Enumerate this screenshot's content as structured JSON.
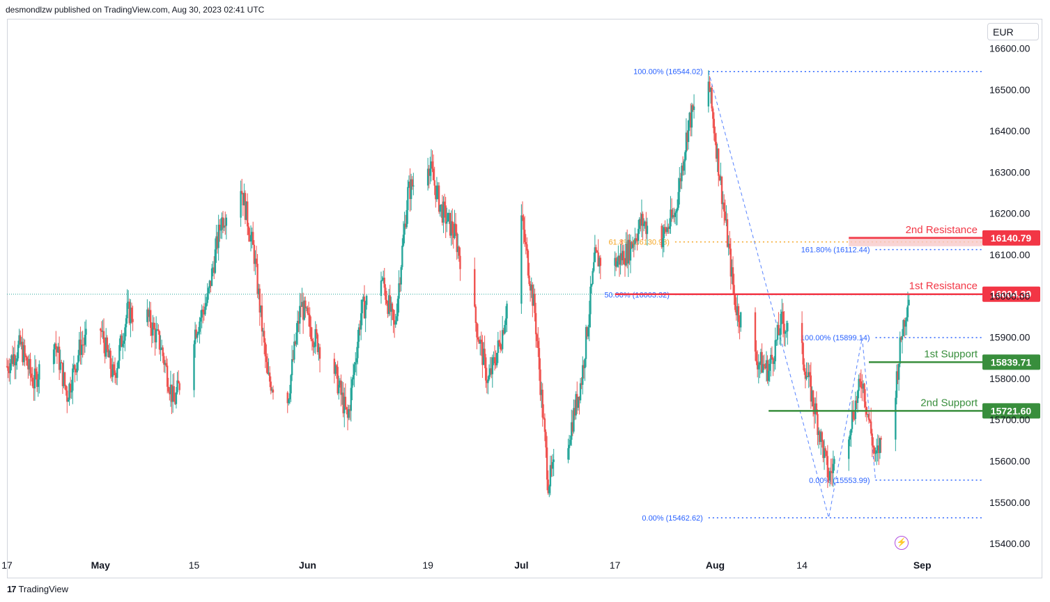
{
  "header": {
    "text": "desmondlzw published on TradingView.com, Aug 30, 2023 02:41 UTC"
  },
  "currency": "EUR",
  "footer": {
    "logo_text": "TradingView"
  },
  "icons": {
    "footer_logo": "tradingview-logo-icon",
    "alert": "lightning-icon"
  },
  "colors": {
    "up": "#26a69a",
    "down": "#ef5350",
    "resistance": "#f23645",
    "support": "#388e3c",
    "fib": "#2962ff"
  },
  "chart_data": {
    "type": "candlestick",
    "title": "",
    "currency": "EUR",
    "yaxis": {
      "ticks": [
        15400,
        15500,
        15600,
        15700,
        15800,
        15900,
        16000,
        16100,
        16200,
        16300,
        16400,
        16500,
        16600
      ],
      "tick_labels": [
        "15400.00",
        "15500.00",
        "15600.00",
        "15700.00",
        "15800.00",
        "15900.00",
        "16000.00",
        "16100.00",
        "16200.00",
        "16300.00",
        "16400.00",
        "16500.00",
        "16600.00"
      ],
      "range": [
        15380,
        16670
      ]
    },
    "xaxis": {
      "tick_labels": [
        "17",
        "May",
        "15",
        "Jun",
        "19",
        "Jul",
        "17",
        "Aug",
        "14",
        "Sep"
      ],
      "tick_dates": [
        "2023-04-17",
        "2023-05-01",
        "2023-05-15",
        "2023-06-01",
        "2023-06-19",
        "2023-07-03",
        "2023-07-17",
        "2023-08-01",
        "2023-08-14",
        "2023-09-01"
      ],
      "range": [
        "2023-04-17",
        "2023-09-10"
      ]
    },
    "last_price": 16004.39,
    "levels": [
      {
        "label": "2nd Resistance",
        "value": 16140.79,
        "value_text": "16140.79",
        "kind": "resistance",
        "start": "2023-08-21"
      },
      {
        "label": "1st Resistance",
        "value": 16004.39,
        "value_text": "16004.39",
        "kind": "resistance",
        "start": "2023-07-17"
      },
      {
        "label": "1st Support",
        "value": 15839.71,
        "value_text": "15839.71",
        "kind": "support",
        "start": "2023-08-24"
      },
      {
        "label": "2nd Support",
        "value": 15721.6,
        "value_text": "15721.60",
        "kind": "support",
        "start": "2023-08-09"
      }
    ],
    "fib_levels": [
      {
        "text": "100.00% (16544.02)",
        "value": 16544.02,
        "start": "2023-07-31"
      },
      {
        "text": "61.8% (16130.93)",
        "value": 16130.93,
        "start": "2023-07-26",
        "highlight": true
      },
      {
        "text": "161.80% (16112.44)",
        "value": 16112.44,
        "start": "2023-08-25"
      },
      {
        "text": "50.00% (16003.32)",
        "value": 16003.32,
        "start": "2023-07-26"
      },
      {
        "text": "100.00% (15899.14)",
        "value": 15899.14,
        "start": "2023-08-25"
      },
      {
        "text": "0.00% (15553.99)",
        "value": 15553.99,
        "start": "2023-08-25"
      },
      {
        "text": "0.00% (15462.62)",
        "value": 15462.62,
        "start": "2023-07-31"
      }
    ],
    "fib_trend": [
      {
        "date": "2023-07-31",
        "value": 16544.02
      },
      {
        "date": "2023-08-18",
        "value": 15462.62
      },
      {
        "date": "2023-08-23",
        "value": 15899.14
      },
      {
        "date": "2023-08-25",
        "value": 15553.99
      }
    ],
    "price_path": [
      {
        "date": "2023-04-17",
        "value": 15830
      },
      {
        "date": "2023-04-19",
        "value": 15880
      },
      {
        "date": "2023-04-21",
        "value": 15790
      },
      {
        "date": "2023-04-24",
        "value": 15900
      },
      {
        "date": "2023-04-26",
        "value": 15760
      },
      {
        "date": "2023-04-28",
        "value": 15880
      },
      {
        "date": "2023-05-01",
        "value": 15920
      },
      {
        "date": "2023-05-03",
        "value": 15800
      },
      {
        "date": "2023-05-05",
        "value": 15960
      },
      {
        "date": "2023-05-08",
        "value": 15950
      },
      {
        "date": "2023-05-10",
        "value": 15880
      },
      {
        "date": "2023-05-12",
        "value": 15740
      },
      {
        "date": "2023-05-15",
        "value": 15910
      },
      {
        "date": "2023-05-17",
        "value": 15990
      },
      {
        "date": "2023-05-19",
        "value": 16180
      },
      {
        "date": "2023-05-22",
        "value": 16270
      },
      {
        "date": "2023-05-24",
        "value": 16100
      },
      {
        "date": "2023-05-26",
        "value": 15800
      },
      {
        "date": "2023-05-29",
        "value": 15750
      },
      {
        "date": "2023-05-31",
        "value": 15980
      },
      {
        "date": "2023-06-02",
        "value": 15900
      },
      {
        "date": "2023-06-05",
        "value": 15820
      },
      {
        "date": "2023-06-07",
        "value": 15700
      },
      {
        "date": "2023-06-09",
        "value": 15960
      },
      {
        "date": "2023-06-12",
        "value": 16050
      },
      {
        "date": "2023-06-14",
        "value": 15920
      },
      {
        "date": "2023-06-16",
        "value": 16250
      },
      {
        "date": "2023-06-19",
        "value": 16330
      },
      {
        "date": "2023-06-21",
        "value": 16210
      },
      {
        "date": "2023-06-23",
        "value": 16150
      },
      {
        "date": "2023-06-26",
        "value": 15950
      },
      {
        "date": "2023-06-28",
        "value": 15790
      },
      {
        "date": "2023-06-30",
        "value": 15900
      },
      {
        "date": "2023-07-03",
        "value": 16190
      },
      {
        "date": "2023-07-05",
        "value": 15960
      },
      {
        "date": "2023-07-07",
        "value": 15550
      },
      {
        "date": "2023-07-10",
        "value": 15650
      },
      {
        "date": "2023-07-12",
        "value": 15800
      },
      {
        "date": "2023-07-14",
        "value": 16090
      },
      {
        "date": "2023-07-17",
        "value": 16080
      },
      {
        "date": "2023-07-19",
        "value": 16110
      },
      {
        "date": "2023-07-21",
        "value": 16180
      },
      {
        "date": "2023-07-24",
        "value": 16140
      },
      {
        "date": "2023-07-26",
        "value": 16200
      },
      {
        "date": "2023-07-28",
        "value": 16420
      },
      {
        "date": "2023-07-31",
        "value": 16520
      },
      {
        "date": "2023-08-02",
        "value": 16250
      },
      {
        "date": "2023-08-04",
        "value": 15980
      },
      {
        "date": "2023-08-07",
        "value": 15850
      },
      {
        "date": "2023-08-09",
        "value": 15820
      },
      {
        "date": "2023-08-11",
        "value": 15940
      },
      {
        "date": "2023-08-14",
        "value": 15860
      },
      {
        "date": "2023-08-16",
        "value": 15720
      },
      {
        "date": "2023-08-18",
        "value": 15560
      },
      {
        "date": "2023-08-21",
        "value": 15680
      },
      {
        "date": "2023-08-23",
        "value": 15800
      },
      {
        "date": "2023-08-25",
        "value": 15600
      },
      {
        "date": "2023-08-28",
        "value": 15780
      },
      {
        "date": "2023-08-29",
        "value": 15920
      },
      {
        "date": "2023-08-30",
        "value": 16004
      }
    ]
  }
}
